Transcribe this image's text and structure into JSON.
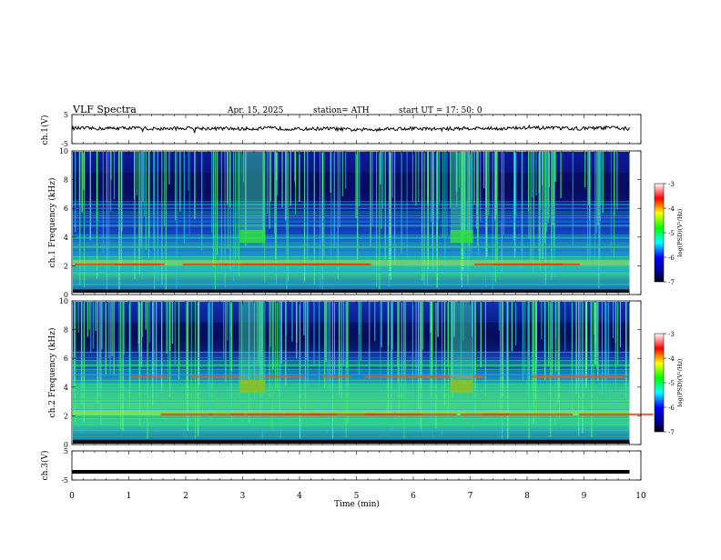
{
  "header": {
    "title": "VLF  Spectra",
    "date": "Apr. 15, 2025",
    "station": "station= ATH",
    "start": "start  UT  =   17: 50: 0"
  },
  "chart_data": [
    {
      "type": "line",
      "panel": "ch1-waveform",
      "ylabel": "ch.1(V)",
      "ylim": [
        -5,
        5
      ],
      "yticks": [
        "5",
        "-5"
      ],
      "description_series": "noisy trace near 0 V with occasional spikes",
      "x": [
        0,
        0.5,
        1,
        1.5,
        2,
        2.5,
        3,
        3.5,
        4,
        4.5,
        5,
        5.5,
        6,
        6.5,
        7,
        7.5,
        8,
        8.5,
        9,
        9.5,
        9.8
      ],
      "values": [
        0.3,
        0.2,
        0.4,
        0.1,
        0.3,
        0.2,
        0.1,
        0.3,
        0.0,
        0.2,
        -0.3,
        0.1,
        0.2,
        0.0,
        0.3,
        0.2,
        0.4,
        0.3,
        0.2,
        0.5,
        0.1
      ]
    },
    {
      "type": "heatmap",
      "panel": "ch1-spectrogram",
      "ylabel": "ch.1 Frequency (kHz)",
      "ylim": [
        0,
        10
      ],
      "yticks": [
        "0",
        "2",
        "4",
        "6",
        "8",
        "10"
      ],
      "colorbar": {
        "label": "log(PSD)(V²/Hz)",
        "ticks": [
          "-3",
          "-4",
          "-5",
          "-6",
          "-7"
        ],
        "range": [
          -7,
          -3
        ]
      },
      "features": [
        {
          "label": "",
          "x_range": [
            2.95,
            3.4
          ],
          "f_range": [
            3.5,
            10
          ],
          "level": -5
        },
        {
          "label": "",
          "x_range": [
            6.65,
            7.05
          ],
          "f_range": [
            3.5,
            10
          ],
          "level": -5
        }
      ]
    },
    {
      "type": "heatmap",
      "panel": "ch2-spectrogram",
      "ylabel": "ch.2 Frequency (kHz)",
      "ylim": [
        0,
        10
      ],
      "yticks": [
        "0",
        "2",
        "4",
        "6",
        "8",
        "10"
      ],
      "colorbar": {
        "label": "log(PSD)(V²/Hz)",
        "ticks": [
          "-3",
          "-4",
          "-5",
          "-6",
          "-7"
        ],
        "range": [
          -7,
          -3
        ]
      }
    },
    {
      "type": "line",
      "panel": "ch3-waveform",
      "ylabel": "ch.3(V)",
      "ylim": [
        -5,
        5
      ],
      "yticks": [
        "5",
        "-5"
      ],
      "x": [
        0,
        10
      ],
      "values": [
        -2.2,
        -2.2
      ]
    }
  ],
  "xaxis": {
    "label": "Time  (min)",
    "ticks": [
      "0",
      "1",
      "2",
      "3",
      "4",
      "5",
      "6",
      "7",
      "8",
      "9",
      "10"
    ],
    "xlim": [
      0,
      10
    ]
  },
  "colors": {
    "background": "#ffffff",
    "ink": "#000000"
  }
}
